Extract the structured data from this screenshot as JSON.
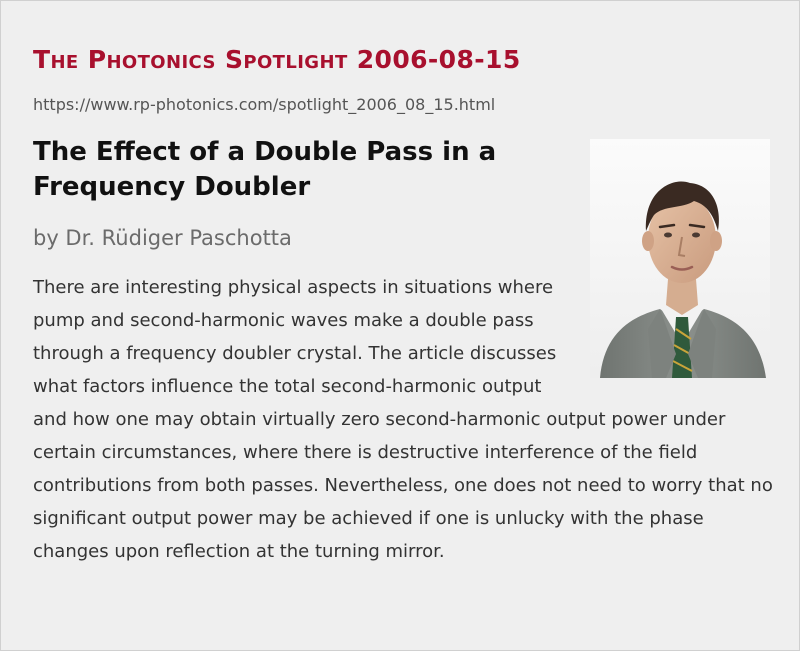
{
  "spotlight": {
    "heading": "The Photonics Spotlight 2006-08-15",
    "url": "https://www.rp-photonics.com/spotlight_2006_08_15.html"
  },
  "article": {
    "title": "The Effect of a Double Pass in a Frequency Doubler",
    "author": "by Dr. Rüdiger Paschotta",
    "abstract": "There are interesting physical aspects in situations where pump and second-harmonic waves make a double pass through a frequency doubler crystal. The article discusses what factors influence the total second-harmonic output and how one may obtain virtually zero second-harmonic output power under certain circumstances, where there is destructive interference of the field contributions from both passes. Nevertheless, one does not need to worry that no significant output power may be achieved if one is unlucky with the phase changes upon reflection at the turning mirror."
  },
  "colors": {
    "heading": "#a8102e",
    "background": "#efefef",
    "text": "#333333"
  }
}
